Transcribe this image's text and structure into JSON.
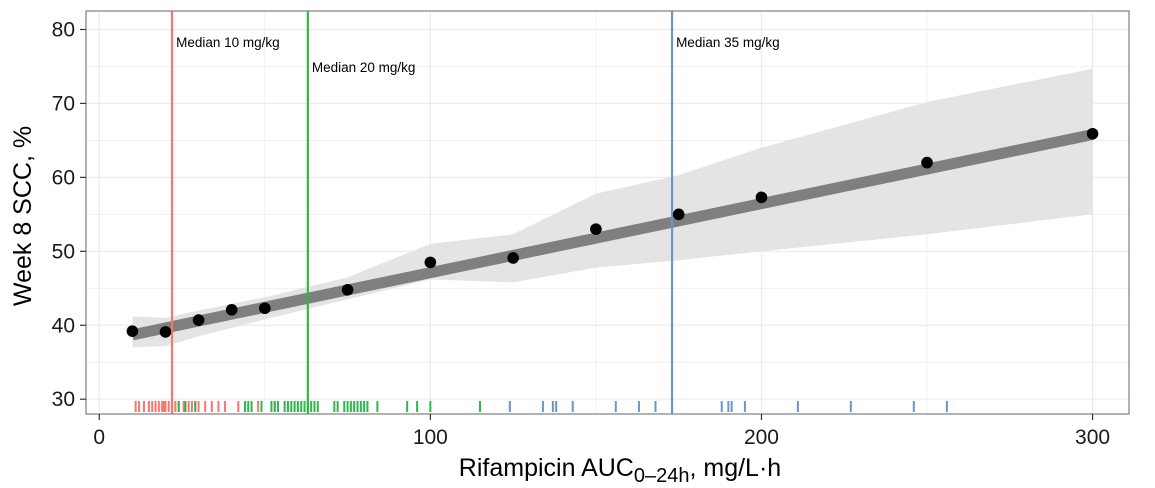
{
  "chart_data": {
    "type": "line",
    "xlabel_main": "Rifampicin AUC",
    "xlabel_sub": "0–24h",
    "xlabel_rest": ", mg/L·h",
    "ylabel": "Week 8 SCC, %",
    "xlim": [
      -4,
      311
    ],
    "ylim": [
      28,
      82.5
    ],
    "x_ticks": [
      0,
      100,
      200,
      300
    ],
    "y_ticks": [
      30,
      40,
      50,
      60,
      70,
      80
    ],
    "grid": true,
    "series": [
      {
        "points": {
          "x": [
            10,
            20,
            30,
            40,
            50,
            75,
            100,
            125,
            150,
            175,
            200,
            250,
            300
          ],
          "y": [
            39.2,
            39.1,
            40.7,
            42.1,
            42.3,
            44.8,
            48.5,
            49.1,
            53.0,
            55.0,
            57.3,
            62.0,
            65.9
          ]
        },
        "trend": {
          "x": [
            10,
            300
          ],
          "y": [
            38.7,
            65.8
          ]
        },
        "ci_band": {
          "x": [
            10,
            20,
            30,
            50,
            75,
            100,
            125,
            150,
            175,
            200,
            250,
            300
          ],
          "lower": [
            37.0,
            37.2,
            38.5,
            40.8,
            43.5,
            46.2,
            45.8,
            47.8,
            48.8,
            50.0,
            52.3,
            55.0
          ],
          "upper": [
            41.2,
            41.0,
            42.0,
            43.8,
            46.5,
            51.0,
            52.3,
            57.8,
            60.3,
            64.0,
            70.2,
            74.7
          ]
        }
      }
    ],
    "vertical_lines": [
      {
        "label": "Median 10 mg/kg",
        "x": 22,
        "color": "#f8766d"
      },
      {
        "label": "Median 20 mg/kg",
        "x": 63,
        "color": "#2eb84c"
      },
      {
        "label": "Median 35 mg/kg",
        "x": 173,
        "color": "#6f95c8"
      }
    ],
    "rug_groups": [
      {
        "color": "#f8766d",
        "x": [
          11,
          12,
          13.5,
          15,
          16,
          17,
          18,
          19,
          19.5,
          20,
          21,
          22,
          23,
          24,
          25.5,
          26,
          27,
          28,
          29,
          30,
          32,
          34,
          36,
          38,
          42,
          48,
          53
        ]
      },
      {
        "color": "#2eb84c",
        "x": [
          24,
          26,
          29,
          44,
          45,
          46,
          49,
          52,
          53,
          54,
          56,
          57,
          58,
          59,
          60,
          61,
          62,
          63,
          64,
          65,
          66,
          71,
          72,
          74,
          75,
          76,
          77,
          78,
          79,
          80,
          81,
          84,
          93,
          96,
          100,
          115
        ]
      },
      {
        "color": "#6f95c8",
        "x": [
          124,
          134,
          137,
          138,
          143,
          156,
          163,
          168,
          188,
          190,
          191,
          195,
          211,
          227,
          246,
          256
        ]
      }
    ],
    "colors": {
      "trend": "#7f7f7f",
      "ci_band": "#e4e4e4",
      "points": "#000000",
      "grid": "#ebebeb",
      "panel_border": "#7f7f7f"
    }
  }
}
